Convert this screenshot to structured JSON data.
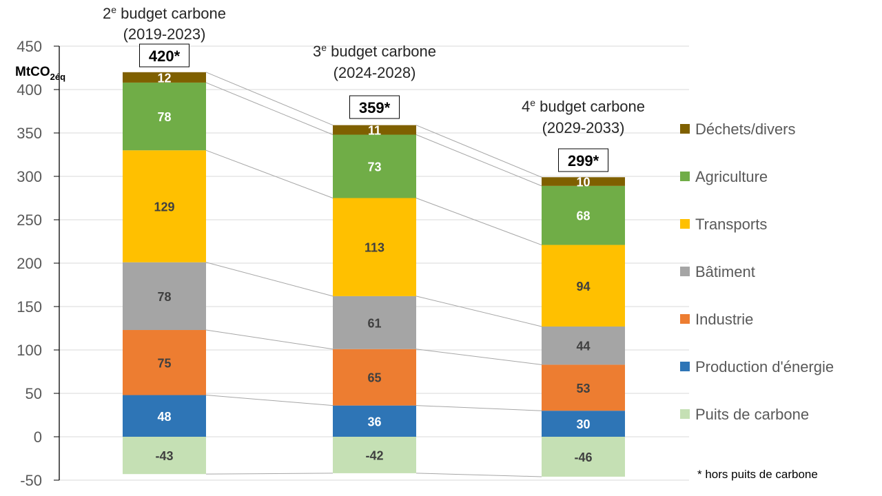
{
  "chart_data": {
    "type": "bar",
    "stacked": true,
    "title": "",
    "ylabel": "MtCO",
    "ylabel_subscript": "2éq",
    "ylim": [
      -50,
      450
    ],
    "yticks": [
      -50,
      0,
      50,
      100,
      150,
      200,
      250,
      300,
      350,
      400,
      450
    ],
    "grid": true,
    "legend_position": "right",
    "categories": [
      {
        "title_num": "2",
        "title_sup": "e",
        "title_rest": " budget carbone",
        "period": "(2019-2023)",
        "total_label": "420*"
      },
      {
        "title_num": "3",
        "title_sup": "e",
        "title_rest": " budget carbone",
        "period": "(2024-2028)",
        "total_label": "359*"
      },
      {
        "title_num": "4",
        "title_sup": "e",
        "title_rest": " budget carbone",
        "period": "(2029-2033)",
        "total_label": "299*"
      }
    ],
    "series": [
      {
        "name": "Puits de carbone",
        "color": "#C5E0B4",
        "label_color": "#404040",
        "values": [
          -43,
          -42,
          -46
        ]
      },
      {
        "name": "Production d'énergie",
        "color": "#2E75B6",
        "label_color": "#ffffff",
        "values": [
          48,
          36,
          30
        ]
      },
      {
        "name": "Industrie",
        "color": "#ED7D31",
        "label_color": "#404040",
        "values": [
          75,
          65,
          53
        ]
      },
      {
        "name": "Bâtiment",
        "color": "#A5A5A5",
        "label_color": "#404040",
        "values": [
          78,
          61,
          44
        ]
      },
      {
        "name": "Transports",
        "color": "#FFC000",
        "label_color": "#404040",
        "values": [
          129,
          113,
          94
        ]
      },
      {
        "name": "Agriculture",
        "color": "#70AD47",
        "label_color": "#ffffff",
        "values": [
          78,
          73,
          68
        ]
      },
      {
        "name": "Déchets/divers",
        "color": "#7F6000",
        "label_color": "#ffffff",
        "values": [
          12,
          11,
          10
        ]
      }
    ],
    "legend_order": [
      "Déchets/divers",
      "Agriculture",
      "Transports",
      "Bâtiment",
      "Industrie",
      "Production d'énergie",
      "Puits de carbone"
    ],
    "footnote": "* hors puits de carbone"
  }
}
